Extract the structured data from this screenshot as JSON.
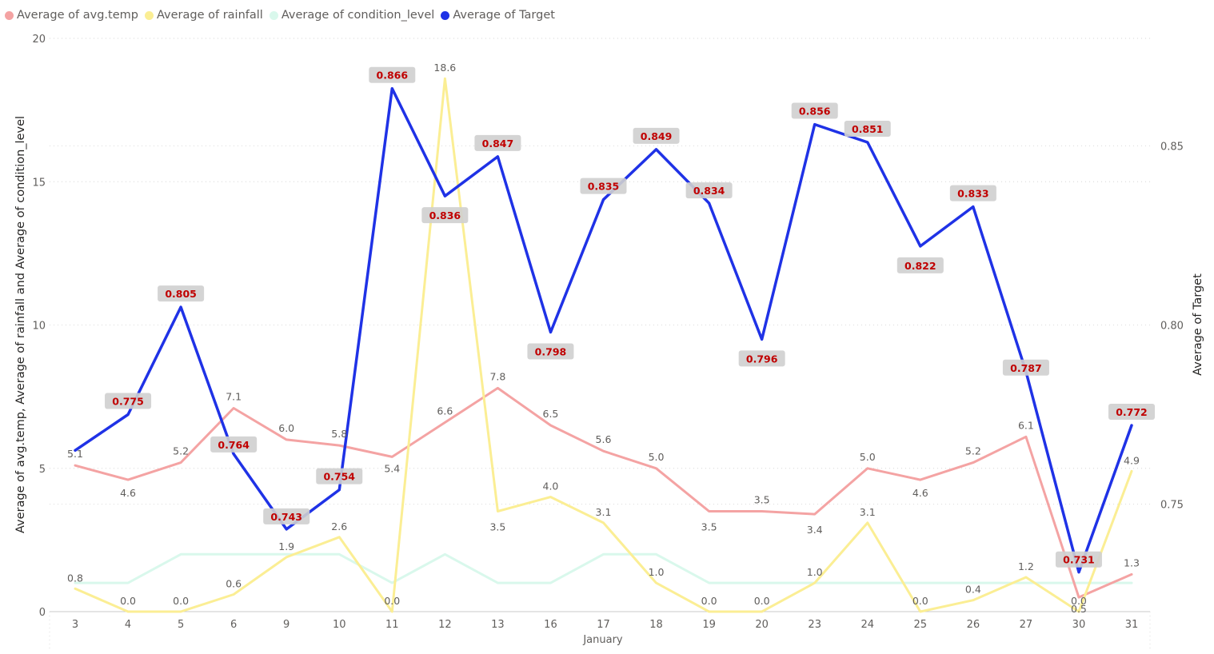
{
  "chart_data": {
    "type": "line",
    "categories": [
      "3",
      "4",
      "5",
      "6",
      "9",
      "10",
      "11",
      "12",
      "13",
      "16",
      "17",
      "18",
      "19",
      "20",
      "23",
      "24",
      "25",
      "26",
      "27",
      "30",
      "31"
    ],
    "xlabel": "January",
    "ylabel_left": "Average of avg.temp, Average of rainfall and Average of condition_level",
    "ylabel_right": "Average of Target",
    "ylim_left": [
      0,
      20
    ],
    "yticks_left": [
      "0",
      "5",
      "10",
      "15",
      "20"
    ],
    "ylim_right": [
      0.72,
      0.88
    ],
    "yticks_right": [
      "0.75",
      "0.80",
      "0.85"
    ],
    "legend_position": "top-left",
    "grid": "horizontal dotted",
    "series": [
      {
        "name": "Average of avg.temp",
        "color": "#F4A3A3",
        "axis": "left",
        "values": [
          5.1,
          4.6,
          5.2,
          7.1,
          6.0,
          5.8,
          5.4,
          6.6,
          7.8,
          6.5,
          5.6,
          5.0,
          3.5,
          3.5,
          3.4,
          5.0,
          4.6,
          5.2,
          6.1,
          0.5,
          1.3
        ],
        "labels": [
          "5.1",
          "4.6",
          "5.2",
          "7.1",
          "6.0",
          "5.8",
          "5.4",
          "6.6",
          "7.8",
          "6.5",
          "5.6",
          "5.0",
          "3.5",
          "3.5",
          "3.4",
          "5.0",
          "4.6",
          "5.2",
          "6.1",
          "0.5",
          "1.3"
        ]
      },
      {
        "name": "Average of rainfall",
        "color": "#FBEE94",
        "axis": "left",
        "values": [
          0.8,
          0.0,
          0.0,
          0.6,
          1.9,
          2.6,
          0.0,
          18.6,
          3.5,
          4.0,
          3.1,
          1.0,
          0.0,
          0.0,
          1.0,
          3.1,
          0.0,
          0.4,
          1.2,
          0.0,
          4.9
        ],
        "labels": [
          "0.8",
          "0.0",
          "0.0",
          "0.6",
          "1.9",
          "2.6",
          "0.0",
          "18.6",
          "3.5",
          "4.0",
          "3.1",
          "1.0",
          "0.0",
          "0.0",
          "1.0",
          "3.1",
          "0.0",
          "0.4",
          "1.2",
          "0.0",
          "4.9"
        ]
      },
      {
        "name": "Average of condition_level",
        "color": "#D9F8EC",
        "axis": "left",
        "values": [
          1,
          1,
          2,
          2,
          2,
          2,
          1,
          2,
          1,
          1,
          2,
          2,
          1,
          1,
          1,
          1,
          1,
          1,
          1,
          1,
          1
        ]
      },
      {
        "name": "Average of Target",
        "color": "#1F32E6",
        "axis": "right",
        "values": [
          0.765,
          0.775,
          0.805,
          0.764,
          0.743,
          0.754,
          0.866,
          0.836,
          0.847,
          0.798,
          0.835,
          0.849,
          0.834,
          0.796,
          0.856,
          0.851,
          0.822,
          0.833,
          0.787,
          0.731,
          0.772
        ],
        "labels": [
          "",
          "0.775",
          "0.805",
          "0.764",
          "0.743",
          "0.754",
          "0.866",
          "0.836",
          "0.847",
          "0.798",
          "0.835",
          "0.849",
          "0.834",
          "0.796",
          "0.856",
          "0.851",
          "0.822",
          "0.833",
          "0.787",
          "0.731",
          "0.772"
        ],
        "label_color": "#C00000"
      }
    ]
  }
}
